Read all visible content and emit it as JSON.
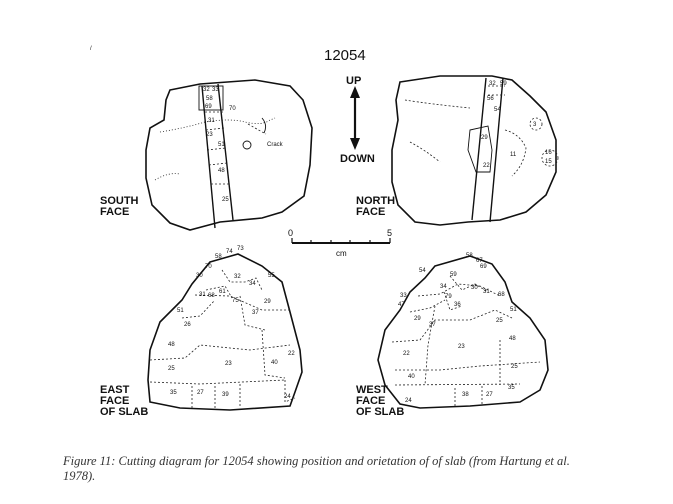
{
  "title": "12054",
  "orientation": {
    "up": "UP",
    "down": "DOWN"
  },
  "scale": {
    "min": "0",
    "max": "5",
    "unit": "cm"
  },
  "faces": {
    "south": [
      "SOUTH",
      "FACE"
    ],
    "north": [
      "NORTH",
      "FACE"
    ],
    "east": [
      "EAST",
      "FACE",
      "OF SLAB"
    ],
    "west": [
      "WEST",
      "FACE",
      "OF SLAB"
    ]
  },
  "crack_label": "Crack",
  "south_numbers": [
    "32",
    "33",
    "58",
    "69",
    "70",
    "31",
    "23",
    "51",
    "48",
    "25"
  ],
  "north_numbers": [
    "32",
    "59",
    "56",
    "54",
    "3",
    "29",
    "22",
    "11",
    "16",
    "15"
  ],
  "east_numbers": [
    "73",
    "74",
    "58",
    "70",
    "30",
    "32",
    "55",
    "34",
    "61",
    "31",
    "68",
    "75",
    "29",
    "37",
    "51",
    "26",
    "48",
    "23",
    "40",
    "22",
    "25",
    "35",
    "27",
    "39",
    "24"
  ],
  "west_numbers": [
    "58",
    "67",
    "69",
    "54",
    "59",
    "34",
    "30",
    "31",
    "33",
    "47",
    "79",
    "36",
    "68",
    "51",
    "29",
    "37",
    "25",
    "48",
    "22",
    "23",
    "40",
    "25",
    "35",
    "24",
    "38",
    "27"
  ],
  "caption": "Figure 11:  Cutting diagram for 12054 showing position and orietation of of slab (from Hartung et al. 1978)."
}
